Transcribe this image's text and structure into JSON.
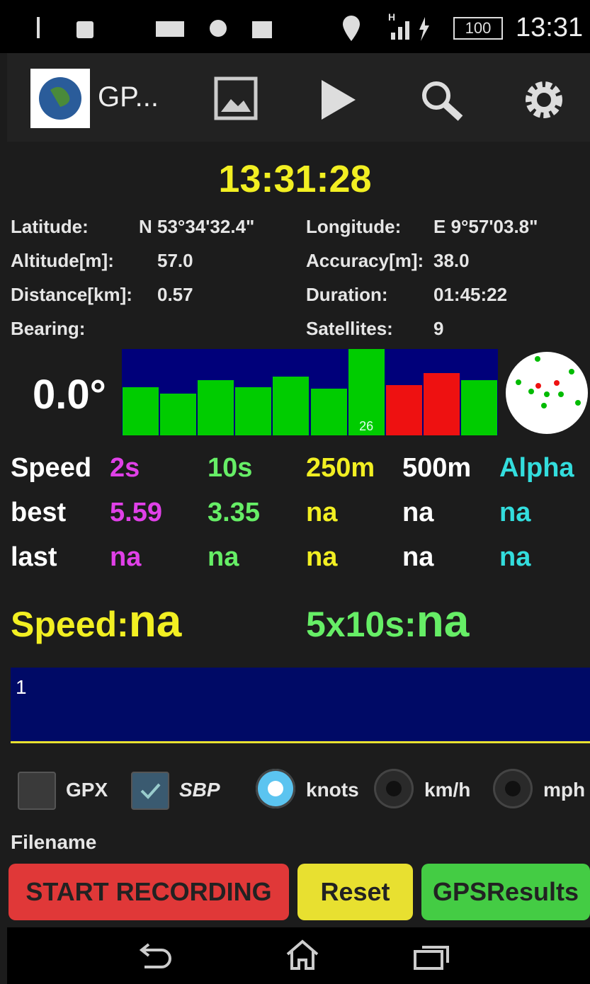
{
  "status_bar": {
    "network": "H",
    "battery": "100",
    "time": "13:31"
  },
  "toolbar": {
    "title": "GP..."
  },
  "clock": "13:31:28",
  "info": [
    {
      "label": "Latitude:",
      "value": "N 53°34'32.4\""
    },
    {
      "label": "Longitude:",
      "value": "E 9°57'03.8\""
    },
    {
      "label": "Altitude[m]:",
      "value": "57.0"
    },
    {
      "label": "Accuracy[m]:",
      "value": "38.0"
    },
    {
      "label": "Distance[km]:",
      "value": "0.57"
    },
    {
      "label": "Duration:",
      "value": "01:45:22"
    },
    {
      "label": "Bearing:"
    },
    {
      "label": "Satellites:",
      "value": "9"
    }
  ],
  "bearing": "0.0°",
  "signal_bars": {
    "max": 50,
    "bars": [
      {
        "value": 28,
        "color": "#00cc00"
      },
      {
        "value": 24,
        "color": "#00cc00"
      },
      {
        "value": 32,
        "color": "#00cc00"
      },
      {
        "value": 28,
        "color": "#00cc00"
      },
      {
        "value": 34,
        "color": "#00cc00"
      },
      {
        "value": 27,
        "color": "#00cc00"
      },
      {
        "value": 50,
        "color": "#00cc00",
        "label": "26"
      },
      {
        "value": 29,
        "color": "#ee1111"
      },
      {
        "value": 36,
        "color": "#ee1111"
      },
      {
        "value": 32,
        "color": "#00cc00"
      }
    ]
  },
  "speed_table": {
    "column_colors": [
      "#ffffff",
      "#e040e8",
      "#66ee66",
      "#f2ef22",
      "#ffffff",
      "#33dddd"
    ],
    "header": [
      "Speed",
      "2s",
      "10s",
      "250m",
      "500m",
      "Alpha"
    ],
    "rows": [
      [
        "best",
        "5.59",
        "3.35",
        "na",
        "na",
        "na"
      ],
      [
        "last",
        "na",
        "na",
        "na",
        "na",
        "na"
      ]
    ]
  },
  "current_speed": {
    "label": "Speed:",
    "value": "na"
  },
  "avg_speed": {
    "label": "5x10s:",
    "value": "na"
  },
  "log_text": "1",
  "checkboxes": [
    {
      "label": "GPX",
      "checked": false
    },
    {
      "label": "SBP",
      "checked": true
    }
  ],
  "units": {
    "options": [
      "knots",
      "km/h",
      "mph"
    ],
    "selected": 0
  },
  "filename_label": "Filename",
  "buttons": [
    {
      "label": "START RECORDING",
      "color": "#e03838"
    },
    {
      "label": "Reset",
      "color": "#e8e030"
    },
    {
      "label": "GPSResults",
      "color": "#44cc44"
    }
  ]
}
